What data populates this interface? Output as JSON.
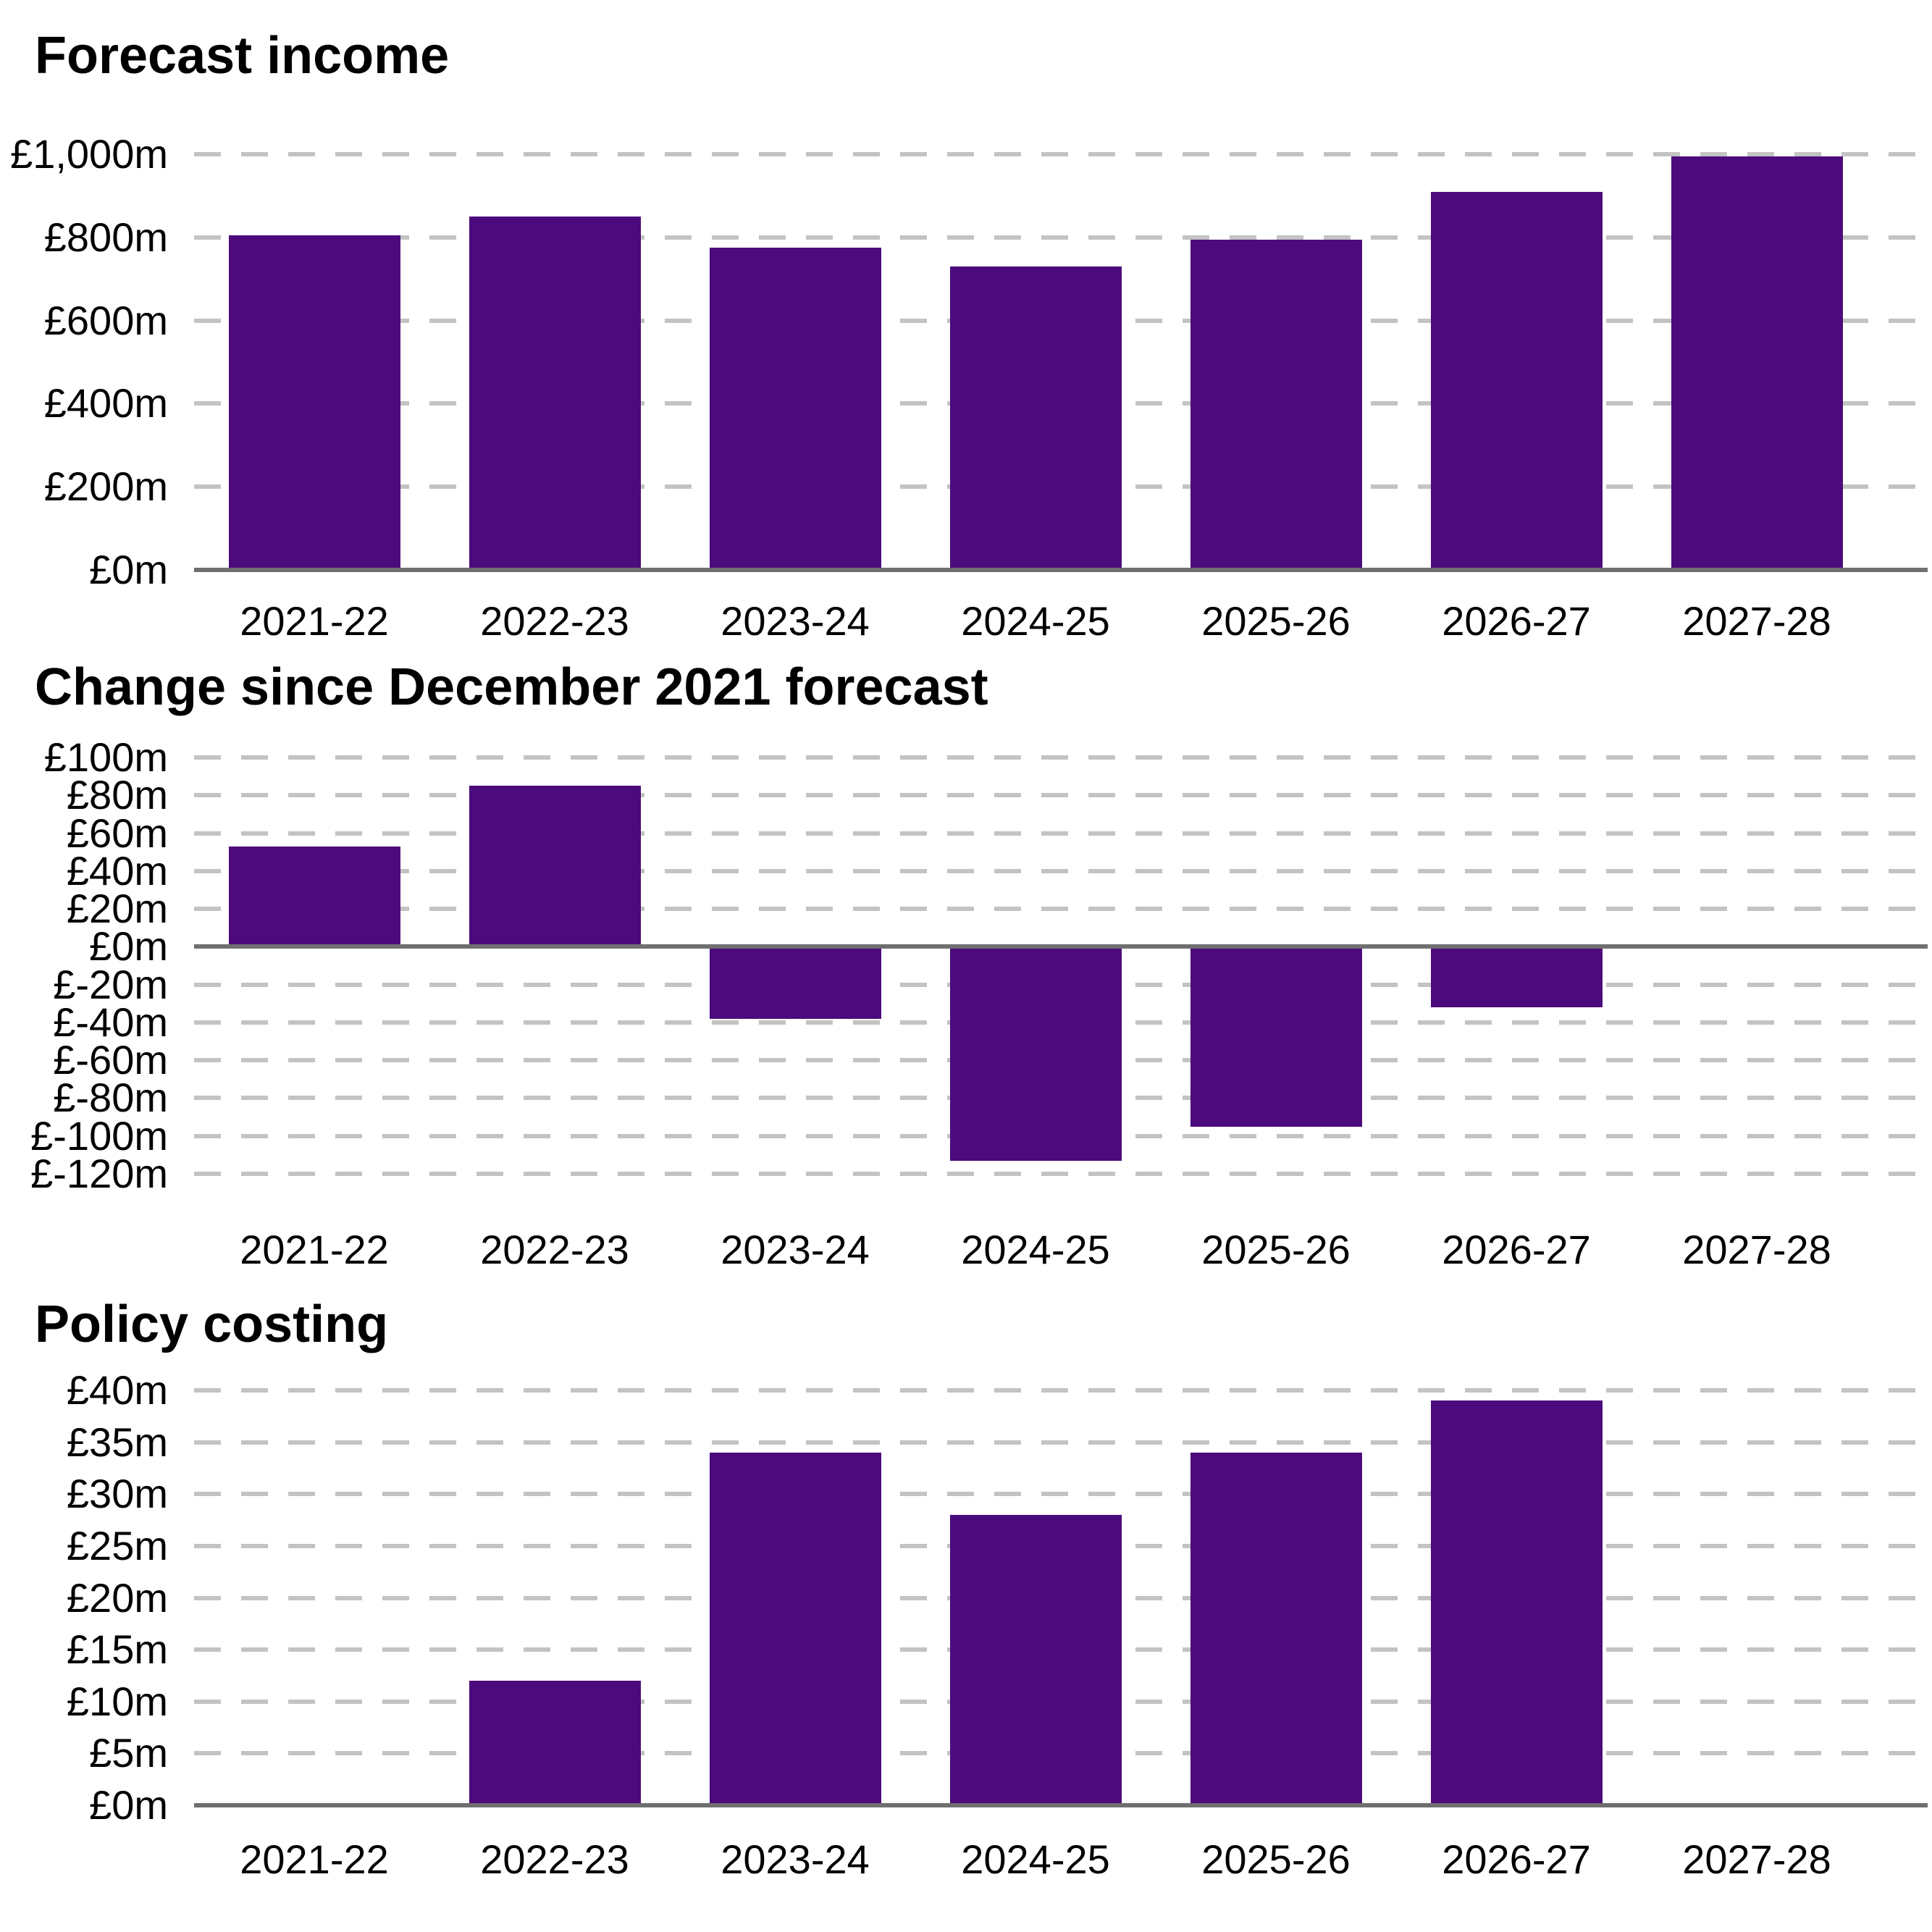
{
  "page": {
    "background": "#ffffff"
  },
  "colors": {
    "bar": "#4c0b7c",
    "gridline": "#c3c3c3",
    "axis": "#6f6f6f",
    "text": "#000000"
  },
  "chart_data": [
    {
      "type": "bar",
      "title": "Forecast income",
      "categories": [
        "2021-22",
        "2022-23",
        "2023-24",
        "2024-25",
        "2025-26",
        "2026-27",
        "2027-28"
      ],
      "values": [
        805,
        850,
        775,
        730,
        795,
        910,
        995
      ],
      "ylim": [
        0,
        1000
      ],
      "ylabel": "",
      "xlabel": "",
      "grid": "dashed-horizontal",
      "legend_position": "none",
      "yticks": [
        {
          "label": "£1,000m",
          "value": 1000
        },
        {
          "label": "£800m",
          "value": 800
        },
        {
          "label": "£600m",
          "value": 600
        },
        {
          "label": "£400m",
          "value": 400
        },
        {
          "label": "£200m",
          "value": 200
        },
        {
          "label": "£0m",
          "value": 0
        }
      ]
    },
    {
      "type": "bar",
      "title": "Change since December 2021 forecast",
      "categories": [
        "2021-22",
        "2022-23",
        "2023-24",
        "2024-25",
        "2025-26",
        "2026-27",
        "2027-28"
      ],
      "values": [
        53,
        85,
        -38,
        -113,
        -95,
        -32,
        null
      ],
      "ylim": [
        -120,
        100
      ],
      "ylabel": "",
      "xlabel": "",
      "grid": "dashed-horizontal",
      "legend_position": "none",
      "yticks": [
        {
          "label": "£100m",
          "value": 100
        },
        {
          "label": "£80m",
          "value": 80
        },
        {
          "label": "£60m",
          "value": 60
        },
        {
          "label": "£40m",
          "value": 40
        },
        {
          "label": "£20m",
          "value": 20
        },
        {
          "label": "£0m",
          "value": 0
        },
        {
          "label": "£-20m",
          "value": -20
        },
        {
          "label": "£-40m",
          "value": -40
        },
        {
          "label": "£-60m",
          "value": -60
        },
        {
          "label": "£-80m",
          "value": -80
        },
        {
          "label": "£-100m",
          "value": -100
        },
        {
          "label": "£-120m",
          "value": -120
        }
      ]
    },
    {
      "type": "bar",
      "title": "Policy costing",
      "categories": [
        "2021-22",
        "2022-23",
        "2023-24",
        "2024-25",
        "2025-26",
        "2026-27",
        "2027-28"
      ],
      "values": [
        null,
        12,
        34,
        28,
        34,
        39,
        null
      ],
      "ylim": [
        0,
        40
      ],
      "ylabel": "",
      "xlabel": "",
      "grid": "dashed-horizontal",
      "legend_position": "none",
      "yticks": [
        {
          "label": "£40m",
          "value": 40
        },
        {
          "label": "£35m",
          "value": 35
        },
        {
          "label": "£30m",
          "value": 30
        },
        {
          "label": "£25m",
          "value": 25
        },
        {
          "label": "£20m",
          "value": 20
        },
        {
          "label": "£15m",
          "value": 15
        },
        {
          "label": "£10m",
          "value": 10
        },
        {
          "label": "£5m",
          "value": 5
        },
        {
          "label": "£0m",
          "value": 0
        }
      ]
    }
  ]
}
